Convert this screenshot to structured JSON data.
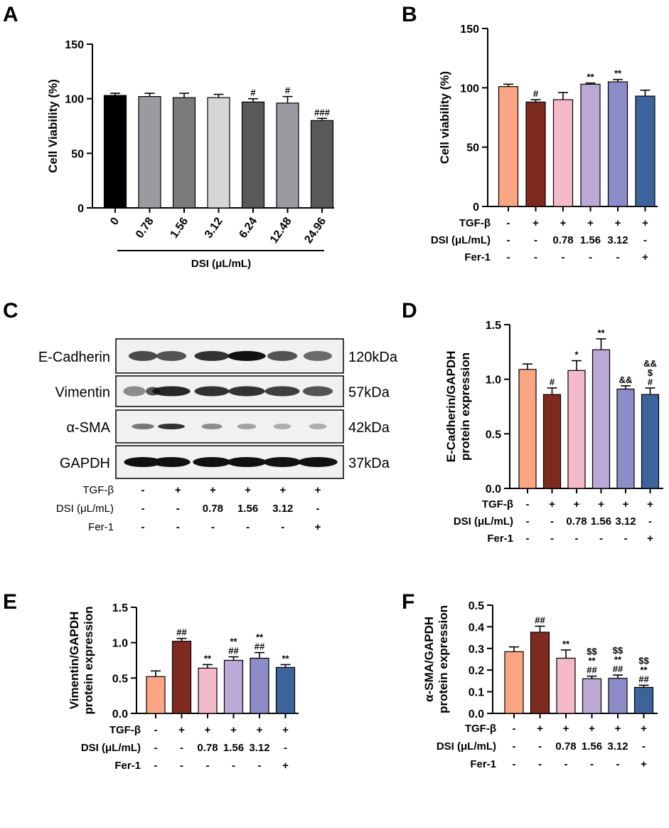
{
  "figure": {
    "panels": [
      "A",
      "B",
      "C",
      "D",
      "E",
      "F"
    ]
  },
  "colors": {
    "treat": [
      "#FCA582",
      "#7F2A1F",
      "#F5BAC9",
      "#BBA8D4",
      "#8C8CC8",
      "#3C649B"
    ],
    "grey": [
      "#000000",
      "#9A9AA0",
      "#7B7B7B",
      "#D6D6D6",
      "#595959",
      "#9A9AA0",
      "#595959"
    ]
  },
  "conditions": {
    "labels": [
      "TGF-β",
      "DSI (μL/mL)",
      "Fer-1"
    ],
    "rows": [
      [
        "-",
        "+",
        "+",
        "+",
        "+",
        "+"
      ],
      [
        "-",
        "-",
        "0.78",
        "1.56",
        "3.12",
        "-"
      ],
      [
        "-",
        "-",
        "-",
        "-",
        "-",
        "+"
      ]
    ]
  },
  "blot": {
    "proteins": [
      "E-Cadherin",
      "Vimentin",
      "α-SMA",
      "GAPDH"
    ],
    "sizes": [
      "120kDa",
      "57kDa",
      "42kDa",
      "37kDa"
    ]
  },
  "chart_data": [
    {
      "panel": "A",
      "type": "bar",
      "title": "",
      "xlabel": "DSI (μL/mL)",
      "ylabel": "Cell Viability (%)",
      "categories": [
        "0",
        "0.78",
        "1.56",
        "3.12",
        "6.24",
        "12.48",
        "24.96"
      ],
      "values": [
        103,
        102,
        101,
        101,
        97,
        96,
        80
      ],
      "errors": [
        2,
        3,
        4,
        3,
        3,
        6,
        2
      ],
      "annotations": [
        [],
        [],
        [],
        [],
        [
          "#"
        ],
        [
          "#"
        ],
        [
          "###"
        ]
      ],
      "ylim": [
        0,
        150
      ],
      "yticks": [
        0,
        50,
        100,
        150
      ]
    },
    {
      "panel": "B",
      "type": "bar",
      "ylabel": "Cell viability (%)",
      "values": [
        101,
        88,
        90,
        103,
        105,
        93
      ],
      "errors": [
        2,
        2,
        6,
        1,
        2,
        5
      ],
      "annotations": [
        [],
        [
          "#"
        ],
        [],
        [
          "**"
        ],
        [
          "**"
        ],
        []
      ],
      "ylim": [
        0,
        150
      ],
      "yticks": [
        0,
        50,
        100,
        150
      ]
    },
    {
      "panel": "D",
      "type": "bar",
      "ylabel_lines": [
        "E-Cadherin/GAPDH",
        "protein expression"
      ],
      "values": [
        1.09,
        0.86,
        1.08,
        1.27,
        0.91,
        0.86
      ],
      "errors": [
        0.05,
        0.06,
        0.09,
        0.1,
        0.03,
        0.06
      ],
      "annotations": [
        [],
        [
          "#"
        ],
        [
          "*"
        ],
        [
          "**"
        ],
        [
          "&&"
        ],
        [
          "&&",
          "$",
          "#"
        ]
      ],
      "ylim": [
        0,
        1.5
      ],
      "yticks": [
        "0.0",
        "0.5",
        "1.0",
        "1.5"
      ]
    },
    {
      "panel": "E",
      "type": "bar",
      "ylabel_lines": [
        "Vimentin/GAPDH",
        "protein expression"
      ],
      "values": [
        0.52,
        1.02,
        0.64,
        0.75,
        0.78,
        0.65
      ],
      "errors": [
        0.08,
        0.04,
        0.05,
        0.05,
        0.08,
        0.04
      ],
      "annotations": [
        [],
        [
          "##"
        ],
        [
          "**"
        ],
        [
          "**",
          "##"
        ],
        [
          "**",
          "##"
        ],
        [
          "**"
        ]
      ],
      "ylim": [
        0,
        1.5
      ],
      "yticks": [
        "0.0",
        "0.5",
        "1.0",
        "1.5"
      ]
    },
    {
      "panel": "F",
      "type": "bar",
      "ylabel_lines": [
        "α-SMA/GAPDH",
        "protein expression"
      ],
      "values": [
        0.285,
        0.375,
        0.255,
        0.16,
        0.162,
        0.12
      ],
      "errors": [
        0.022,
        0.028,
        0.038,
        0.012,
        0.015,
        0.01
      ],
      "annotations": [
        [],
        [
          "##"
        ],
        [
          "**"
        ],
        [
          "$$",
          "**",
          "##"
        ],
        [
          "$$",
          "**",
          "##"
        ],
        [
          "$$",
          "**",
          "##"
        ]
      ],
      "ylim": [
        0,
        0.5
      ],
      "yticks": [
        "0.0",
        "0.1",
        "0.2",
        "0.3",
        "0.4",
        "0.5"
      ]
    }
  ]
}
